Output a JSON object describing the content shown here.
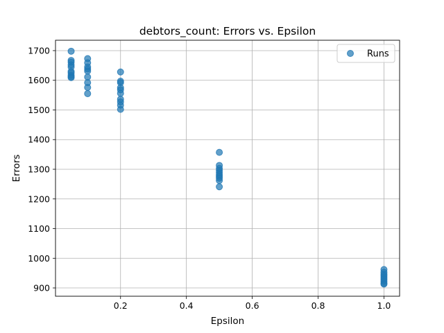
{
  "chart_data": {
    "type": "scatter",
    "title": "debtors_count: Errors vs. Epsilon",
    "xlabel": "Epsilon",
    "ylabel": "Errors",
    "xlim": [
      0.0025,
      1.0475
    ],
    "ylim": [
      872,
      1735
    ],
    "xticks": [
      0.2,
      0.4,
      0.6,
      0.8,
      1.0
    ],
    "xtick_labels": [
      "0.2",
      "0.4",
      "0.6",
      "0.8",
      "1.0"
    ],
    "yticks": [
      900,
      1000,
      1100,
      1200,
      1300,
      1400,
      1500,
      1600,
      1700
    ],
    "ytick_labels": [
      "900",
      "1000",
      "1100",
      "1200",
      "1300",
      "1400",
      "1500",
      "1600",
      "1700"
    ],
    "grid": true,
    "legend": {
      "position": "top-right",
      "entries": [
        "Runs"
      ]
    },
    "colors": {
      "point": "#1f77b4",
      "grid": "#b0b0b0",
      "axes": "#000000"
    },
    "series": [
      {
        "name": "Runs",
        "points": [
          {
            "x": 0.05,
            "y": 1698
          },
          {
            "x": 0.05,
            "y": 1667
          },
          {
            "x": 0.05,
            "y": 1661
          },
          {
            "x": 0.05,
            "y": 1652
          },
          {
            "x": 0.05,
            "y": 1645
          },
          {
            "x": 0.05,
            "y": 1630
          },
          {
            "x": 0.05,
            "y": 1625
          },
          {
            "x": 0.05,
            "y": 1617
          },
          {
            "x": 0.05,
            "y": 1612
          },
          {
            "x": 0.05,
            "y": 1609
          },
          {
            "x": 0.1,
            "y": 1673
          },
          {
            "x": 0.1,
            "y": 1659
          },
          {
            "x": 0.1,
            "y": 1645
          },
          {
            "x": 0.1,
            "y": 1638
          },
          {
            "x": 0.1,
            "y": 1631
          },
          {
            "x": 0.1,
            "y": 1611
          },
          {
            "x": 0.1,
            "y": 1592
          },
          {
            "x": 0.1,
            "y": 1576
          },
          {
            "x": 0.1,
            "y": 1555
          },
          {
            "x": 0.2,
            "y": 1628
          },
          {
            "x": 0.2,
            "y": 1597
          },
          {
            "x": 0.2,
            "y": 1592
          },
          {
            "x": 0.2,
            "y": 1575
          },
          {
            "x": 0.2,
            "y": 1568
          },
          {
            "x": 0.2,
            "y": 1556
          },
          {
            "x": 0.2,
            "y": 1536
          },
          {
            "x": 0.2,
            "y": 1527
          },
          {
            "x": 0.2,
            "y": 1516
          },
          {
            "x": 0.2,
            "y": 1502
          },
          {
            "x": 0.5,
            "y": 1357
          },
          {
            "x": 0.5,
            "y": 1313
          },
          {
            "x": 0.5,
            "y": 1303
          },
          {
            "x": 0.5,
            "y": 1296
          },
          {
            "x": 0.5,
            "y": 1289
          },
          {
            "x": 0.5,
            "y": 1282
          },
          {
            "x": 0.5,
            "y": 1276
          },
          {
            "x": 0.5,
            "y": 1270
          },
          {
            "x": 0.5,
            "y": 1262
          },
          {
            "x": 0.5,
            "y": 1241
          },
          {
            "x": 1.0,
            "y": 962
          },
          {
            "x": 1.0,
            "y": 953
          },
          {
            "x": 1.0,
            "y": 946
          },
          {
            "x": 1.0,
            "y": 940
          },
          {
            "x": 1.0,
            "y": 934
          },
          {
            "x": 1.0,
            "y": 928
          },
          {
            "x": 1.0,
            "y": 922
          },
          {
            "x": 1.0,
            "y": 916
          },
          {
            "x": 1.0,
            "y": 913
          }
        ]
      }
    ]
  }
}
